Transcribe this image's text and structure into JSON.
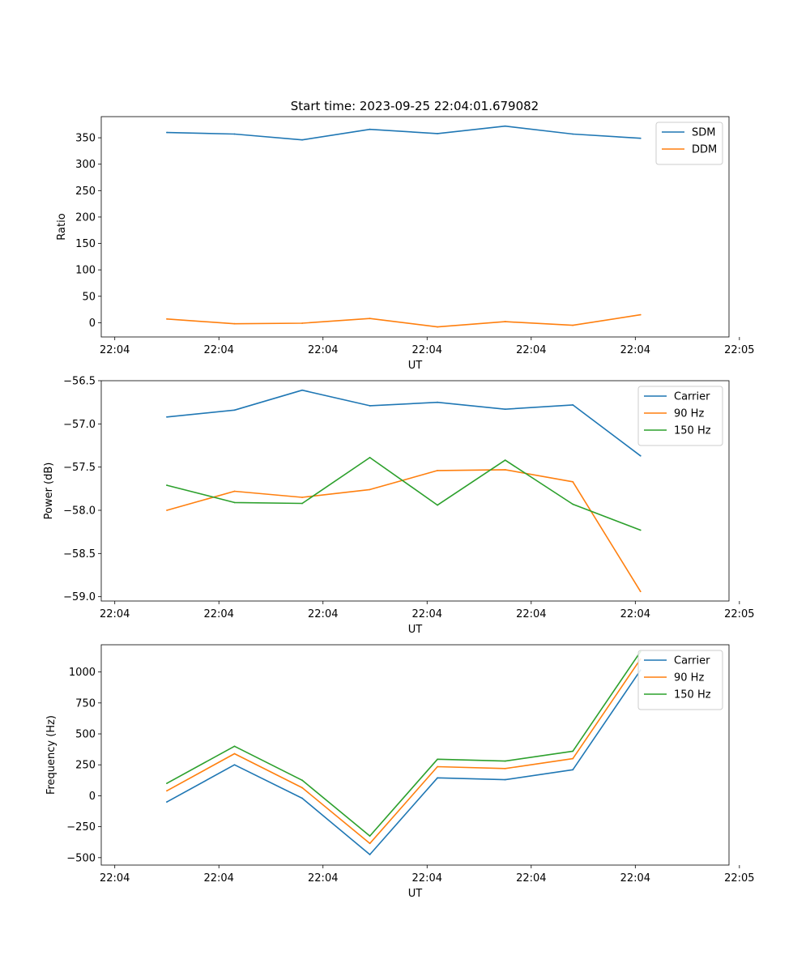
{
  "figure_title": "Start time: 2023-09-25 22:04:01.679082",
  "colors": {
    "c0": "#1f77b4",
    "c1": "#ff7f0e",
    "c2": "#2ca02c"
  },
  "chart_data": [
    {
      "type": "line",
      "title": "Start time: 2023-09-25 22:04:01.679082",
      "xlabel": "UT",
      "ylabel": "Ratio",
      "x": [
        0.5,
        1.15,
        1.8,
        2.45,
        3.1,
        3.75,
        4.4,
        5.05
      ],
      "xlim": [
        -0.13,
        5.9
      ],
      "ylim": [
        -27,
        390
      ],
      "xticks": [
        0.0,
        1.0,
        2.0,
        3.0,
        4.0,
        5.0,
        6.0
      ],
      "xtick_labels": [
        "22:04",
        "22:04",
        "22:04",
        "22:04",
        "22:04",
        "22:04",
        "22:05"
      ],
      "yticks": [
        0,
        50,
        100,
        150,
        200,
        250,
        300,
        350
      ],
      "ytick_labels": [
        "0",
        "50",
        "100",
        "150",
        "200",
        "250",
        "300",
        "350"
      ],
      "legend_position": "top-right",
      "series": [
        {
          "name": "SDM",
          "color": "#1f77b4",
          "values": [
            360,
            357,
            346,
            366,
            358,
            372,
            357,
            349
          ]
        },
        {
          "name": "DDM",
          "color": "#ff7f0e",
          "values": [
            7,
            -2,
            -1,
            8,
            -8,
            2,
            -5,
            15
          ]
        }
      ]
    },
    {
      "type": "line",
      "title": "",
      "xlabel": "UT",
      "ylabel": "Power (dB)",
      "x": [
        0.5,
        1.15,
        1.8,
        2.45,
        3.1,
        3.75,
        4.4,
        5.05
      ],
      "xlim": [
        -0.13,
        5.9
      ],
      "ylim": [
        -59.05,
        -56.5
      ],
      "xticks": [
        0.0,
        1.0,
        2.0,
        3.0,
        4.0,
        5.0,
        6.0
      ],
      "xtick_labels": [
        "22:04",
        "22:04",
        "22:04",
        "22:04",
        "22:04",
        "22:04",
        "22:05"
      ],
      "yticks": [
        -59.0,
        -58.5,
        -58.0,
        -57.5,
        -57.0,
        -56.5
      ],
      "ytick_labels": [
        "−59.0",
        "−58.5",
        "−58.0",
        "−57.5",
        "−57.0",
        "−56.5"
      ],
      "legend_position": "top-right",
      "series": [
        {
          "name": "Carrier",
          "color": "#1f77b4",
          "values": [
            -56.92,
            -56.84,
            -56.61,
            -56.79,
            -56.75,
            -56.83,
            -56.78,
            -57.37
          ]
        },
        {
          "name": "90 Hz",
          "color": "#ff7f0e",
          "values": [
            -58.0,
            -57.78,
            -57.85,
            -57.76,
            -57.54,
            -57.53,
            -57.67,
            -58.94
          ]
        },
        {
          "name": "150 Hz",
          "color": "#2ca02c",
          "values": [
            -57.71,
            -57.91,
            -57.92,
            -57.39,
            -57.94,
            -57.42,
            -57.93,
            -58.23
          ]
        }
      ]
    },
    {
      "type": "line",
      "title": "",
      "xlabel": "UT",
      "ylabel": "Frequency (Hz)",
      "x": [
        0.5,
        1.15,
        1.8,
        2.45,
        3.1,
        3.75,
        4.4,
        5.05
      ],
      "xlim": [
        -0.13,
        5.9
      ],
      "ylim": [
        -560,
        1220
      ],
      "xticks": [
        0.0,
        1.0,
        2.0,
        3.0,
        4.0,
        5.0,
        6.0
      ],
      "xtick_labels": [
        "22:04",
        "22:04",
        "22:04",
        "22:04",
        "22:04",
        "22:04",
        "22:05"
      ],
      "yticks": [
        -500,
        -250,
        0,
        250,
        500,
        750,
        1000
      ],
      "ytick_labels": [
        "−500",
        "−250",
        "0",
        "250",
        "500",
        "750",
        "1000"
      ],
      "legend_position": "top-right",
      "series": [
        {
          "name": "Carrier",
          "color": "#1f77b4",
          "values": [
            -50,
            250,
            -20,
            -475,
            145,
            130,
            210,
            1015
          ]
        },
        {
          "name": "90 Hz",
          "color": "#ff7f0e",
          "values": [
            40,
            340,
            65,
            -385,
            235,
            220,
            300,
            1105
          ]
        },
        {
          "name": "150 Hz",
          "color": "#2ca02c",
          "values": [
            100,
            400,
            125,
            -325,
            295,
            280,
            360,
            1165
          ]
        }
      ]
    }
  ]
}
